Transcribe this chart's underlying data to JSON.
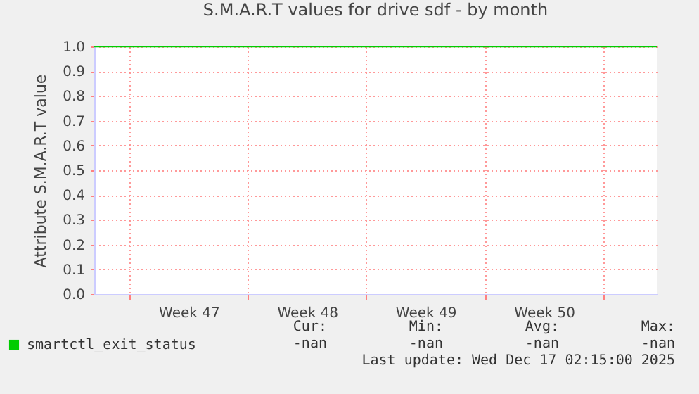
{
  "chart_data": {
    "type": "line",
    "title": "S.M.A.R.T values for drive sdf - by month",
    "ylabel": "Attribute S.M.A.R.T value",
    "xlim": [
      "2025-11-14T22:00",
      "2025-12-18T04:00"
    ],
    "xticks": [
      {
        "value": "2025-11-17",
        "label": null
      },
      {
        "value": "2025-11-20T12:00",
        "label": "Week 47"
      },
      {
        "value": "2025-11-24",
        "label": null
      },
      {
        "value": "2025-11-27T12:00",
        "label": "Week 48"
      },
      {
        "value": "2025-12-01",
        "label": null
      },
      {
        "value": "2025-12-04T12:00",
        "label": "Week 49"
      },
      {
        "value": "2025-12-08",
        "label": null
      },
      {
        "value": "2025-12-11T12:00",
        "label": "Week 50"
      },
      {
        "value": "2025-12-15",
        "label": null
      }
    ],
    "ylim": [
      0,
      1
    ],
    "yticks": [
      {
        "value": 0,
        "label": "0.0"
      },
      0.1,
      0.2,
      0.3,
      0.4,
      0.5,
      0.6,
      0.7,
      0.8,
      0.9,
      {
        "value": 1,
        "label": "1.0"
      }
    ],
    "grid": true,
    "legend": "bottom left",
    "series": [
      {
        "name": "smartctl_exit_status",
        "color": "#00cc00",
        "x": [
          "2025-11-14T22:00",
          "2025-12-18T04:00"
        ],
        "values": [
          1.0,
          1.0
        ]
      }
    ],
    "annotations": [
      "Cur:",
      "Min:",
      "Avg:",
      "Max:",
      "-nan",
      "-nan",
      "-nan",
      "-nan",
      "Last update: Wed Dec 17 02:15:00 2025"
    ]
  }
}
